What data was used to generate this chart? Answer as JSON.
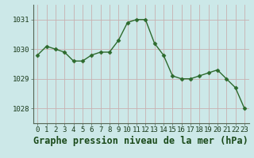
{
  "x": [
    0,
    1,
    2,
    3,
    4,
    5,
    6,
    7,
    8,
    9,
    10,
    11,
    12,
    13,
    14,
    15,
    16,
    17,
    18,
    19,
    20,
    21,
    22,
    23
  ],
  "y": [
    1029.8,
    1030.1,
    1030.0,
    1029.9,
    1029.6,
    1029.6,
    1029.8,
    1029.9,
    1029.9,
    1030.3,
    1030.9,
    1031.0,
    1031.0,
    1030.2,
    1029.8,
    1029.1,
    1029.0,
    1029.0,
    1029.1,
    1029.2,
    1029.3,
    1029.0,
    1028.7,
    1028.0
  ],
  "line_color": "#2d6a2d",
  "marker_color": "#2d6a2d",
  "bg_color": "#cce8e8",
  "grid_color": "#c8b0b0",
  "xlabel": "Graphe pression niveau de la mer (hPa)",
  "xlabel_color": "#1a4a1a",
  "ylabel_ticks": [
    1028,
    1029,
    1030,
    1031
  ],
  "xlim": [
    -0.5,
    23.5
  ],
  "ylim": [
    1027.5,
    1031.5
  ],
  "xtick_labels": [
    "0",
    "1",
    "2",
    "3",
    "4",
    "5",
    "6",
    "7",
    "8",
    "9",
    "10",
    "11",
    "12",
    "13",
    "14",
    "15",
    "16",
    "17",
    "18",
    "19",
    "20",
    "21",
    "22",
    "23"
  ],
  "tick_fontsize": 6.5,
  "xlabel_fontsize": 8.5
}
